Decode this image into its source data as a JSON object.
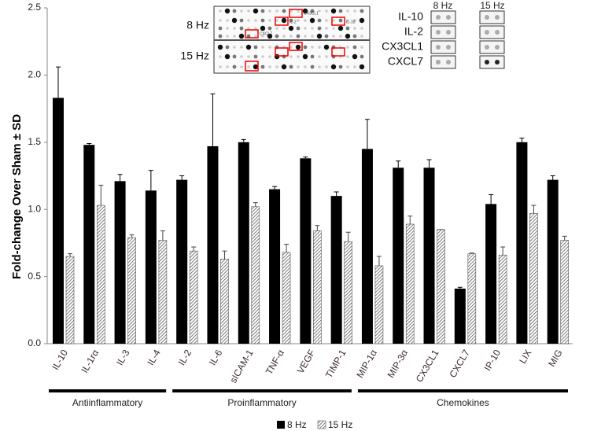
{
  "chart_data": {
    "type": "bar",
    "y_label": "Fold-change Over Sham ± SD",
    "categories": [
      "IL-10",
      "IL-1rα",
      "IL-3",
      "IL-4",
      "IL-2",
      "IL-6",
      "sICAM-1",
      "TNF-α",
      "VEGF",
      "TIMP-1",
      "MIP-1α",
      "MIP-3α",
      "CX3CL1",
      "CXCL7",
      "IP-10",
      "LIX",
      "MIG"
    ],
    "series": [
      {
        "name": "8 Hz",
        "color": "#000000",
        "pattern": "solid",
        "values": [
          1.83,
          1.48,
          1.21,
          1.14,
          1.22,
          1.47,
          1.5,
          1.15,
          1.38,
          1.1,
          1.45,
          1.31,
          1.31,
          0.41,
          1.04,
          1.5,
          1.22
        ],
        "errors": [
          0.23,
          0.01,
          0.05,
          0.15,
          0.03,
          0.39,
          0.02,
          0.02,
          0.01,
          0.03,
          0.22,
          0.05,
          0.06,
          0.01,
          0.07,
          0.03,
          0.03
        ]
      },
      {
        "name": "15 Hz",
        "color": "#555555",
        "pattern": "hatch",
        "values": [
          0.65,
          1.03,
          0.79,
          0.77,
          0.69,
          0.63,
          1.02,
          0.68,
          0.84,
          0.76,
          0.58,
          0.89,
          0.85,
          0.67,
          0.66,
          0.97,
          0.77
        ],
        "errors": [
          0.02,
          0.15,
          0.02,
          0.07,
          0.03,
          0.06,
          0.03,
          0.06,
          0.04,
          0.07,
          0.07,
          0.06,
          0,
          0.005,
          0.06,
          0.06,
          0.03
        ]
      }
    ],
    "groups": [
      {
        "label": "Antiinflammatory",
        "count": 4
      },
      {
        "label": "Proinflammatory",
        "count": 6
      },
      {
        "label": "Chemokines",
        "count": 7
      }
    ],
    "ylim": [
      0,
      2.5
    ],
    "yticks": [
      {
        "value": 0,
        "label": "0.0"
      },
      0.5,
      {
        "value": 1,
        "label": "1.0"
      },
      1.5,
      {
        "value": 2,
        "label": "2.0"
      },
      2.5
    ],
    "grid": false,
    "legend": "bottom"
  },
  "inset": {
    "blot_rows": [
      "8 Hz",
      "15 Hz"
    ],
    "blot_labels": [
      "CX3CL1",
      "IL-2",
      "IL-10",
      "CXCL7"
    ],
    "columns": [
      "8 Hz",
      "15 Hz"
    ],
    "rows": [
      "IL-10",
      "IL-2",
      "CX3CL1",
      "CXCL7"
    ]
  }
}
